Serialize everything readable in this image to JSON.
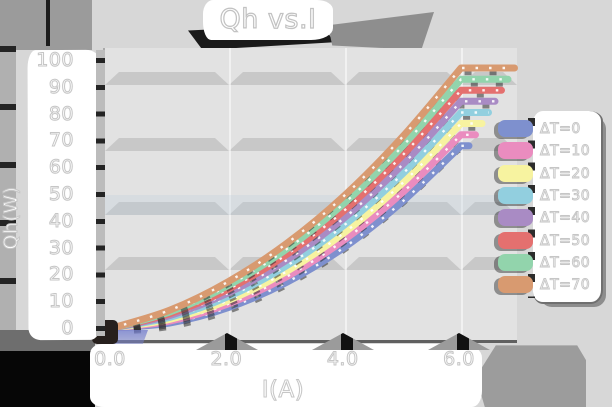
{
  "title": "Qh vs.I",
  "axes": {
    "x_label": "I(A)",
    "y_label": "Qh(W)",
    "x_ticks": [
      "0.0",
      "2.0",
      "4.0",
      "6.0"
    ],
    "y_ticks": [
      "100",
      "90",
      "80",
      "70",
      "60",
      "50",
      "40",
      "30",
      "20",
      "10",
      "0"
    ]
  },
  "style": {
    "page_bg": "#d7d7d7",
    "plot_bg": "#e2e2e2",
    "gridband_color": "#c8c8c8",
    "text_color": "#ffffff",
    "text_outline": "#c6c6c6"
  },
  "chart_data": {
    "type": "line",
    "title": "Qh vs.I",
    "xlabel": "I(A)",
    "ylabel": "Qh(W)",
    "xlim": [
      0,
      6.5
    ],
    "ylim": [
      0,
      105
    ],
    "grid": "horizontal-bands",
    "legend_position": "right",
    "x": [
      0,
      1,
      2,
      3,
      4,
      5,
      6
    ],
    "series": [
      {
        "name": "ΔT=0",
        "color": "#7e90ce",
        "values": [
          0,
          1.9,
          7.6,
          17.0,
          30.2,
          47.3,
          68.0
        ]
      },
      {
        "name": "ΔT=10",
        "color": "#ea8cbf",
        "values": [
          0,
          2.6,
          9.0,
          19.1,
          33.0,
          50.7,
          72.1
        ]
      },
      {
        "name": "ΔT=20",
        "color": "#f7f3a0",
        "values": [
          0,
          3.3,
          10.3,
          21.1,
          35.7,
          54.2,
          76.3
        ]
      },
      {
        "name": "ΔT=30",
        "color": "#92cfdf",
        "values": [
          0,
          4.0,
          11.7,
          23.2,
          38.5,
          57.6,
          80.4
        ]
      },
      {
        "name": "ΔT=40",
        "color": "#a98bc4",
        "values": [
          0,
          4.7,
          13.1,
          25.3,
          41.2,
          61.1,
          84.6
        ]
      },
      {
        "name": "ΔT=50",
        "color": "#e4706f",
        "values": [
          0,
          5.4,
          14.5,
          27.4,
          44.0,
          64.6,
          88.7
        ]
      },
      {
        "name": "ΔT=60",
        "color": "#92d4ac",
        "values": [
          0,
          6.0,
          15.9,
          29.4,
          46.7,
          68.0,
          92.8
        ]
      },
      {
        "name": "ΔT=70",
        "color": "#d89a70",
        "values": [
          0,
          6.7,
          17.3,
          31.5,
          49.5,
          71.5,
          97.0
        ]
      }
    ]
  }
}
